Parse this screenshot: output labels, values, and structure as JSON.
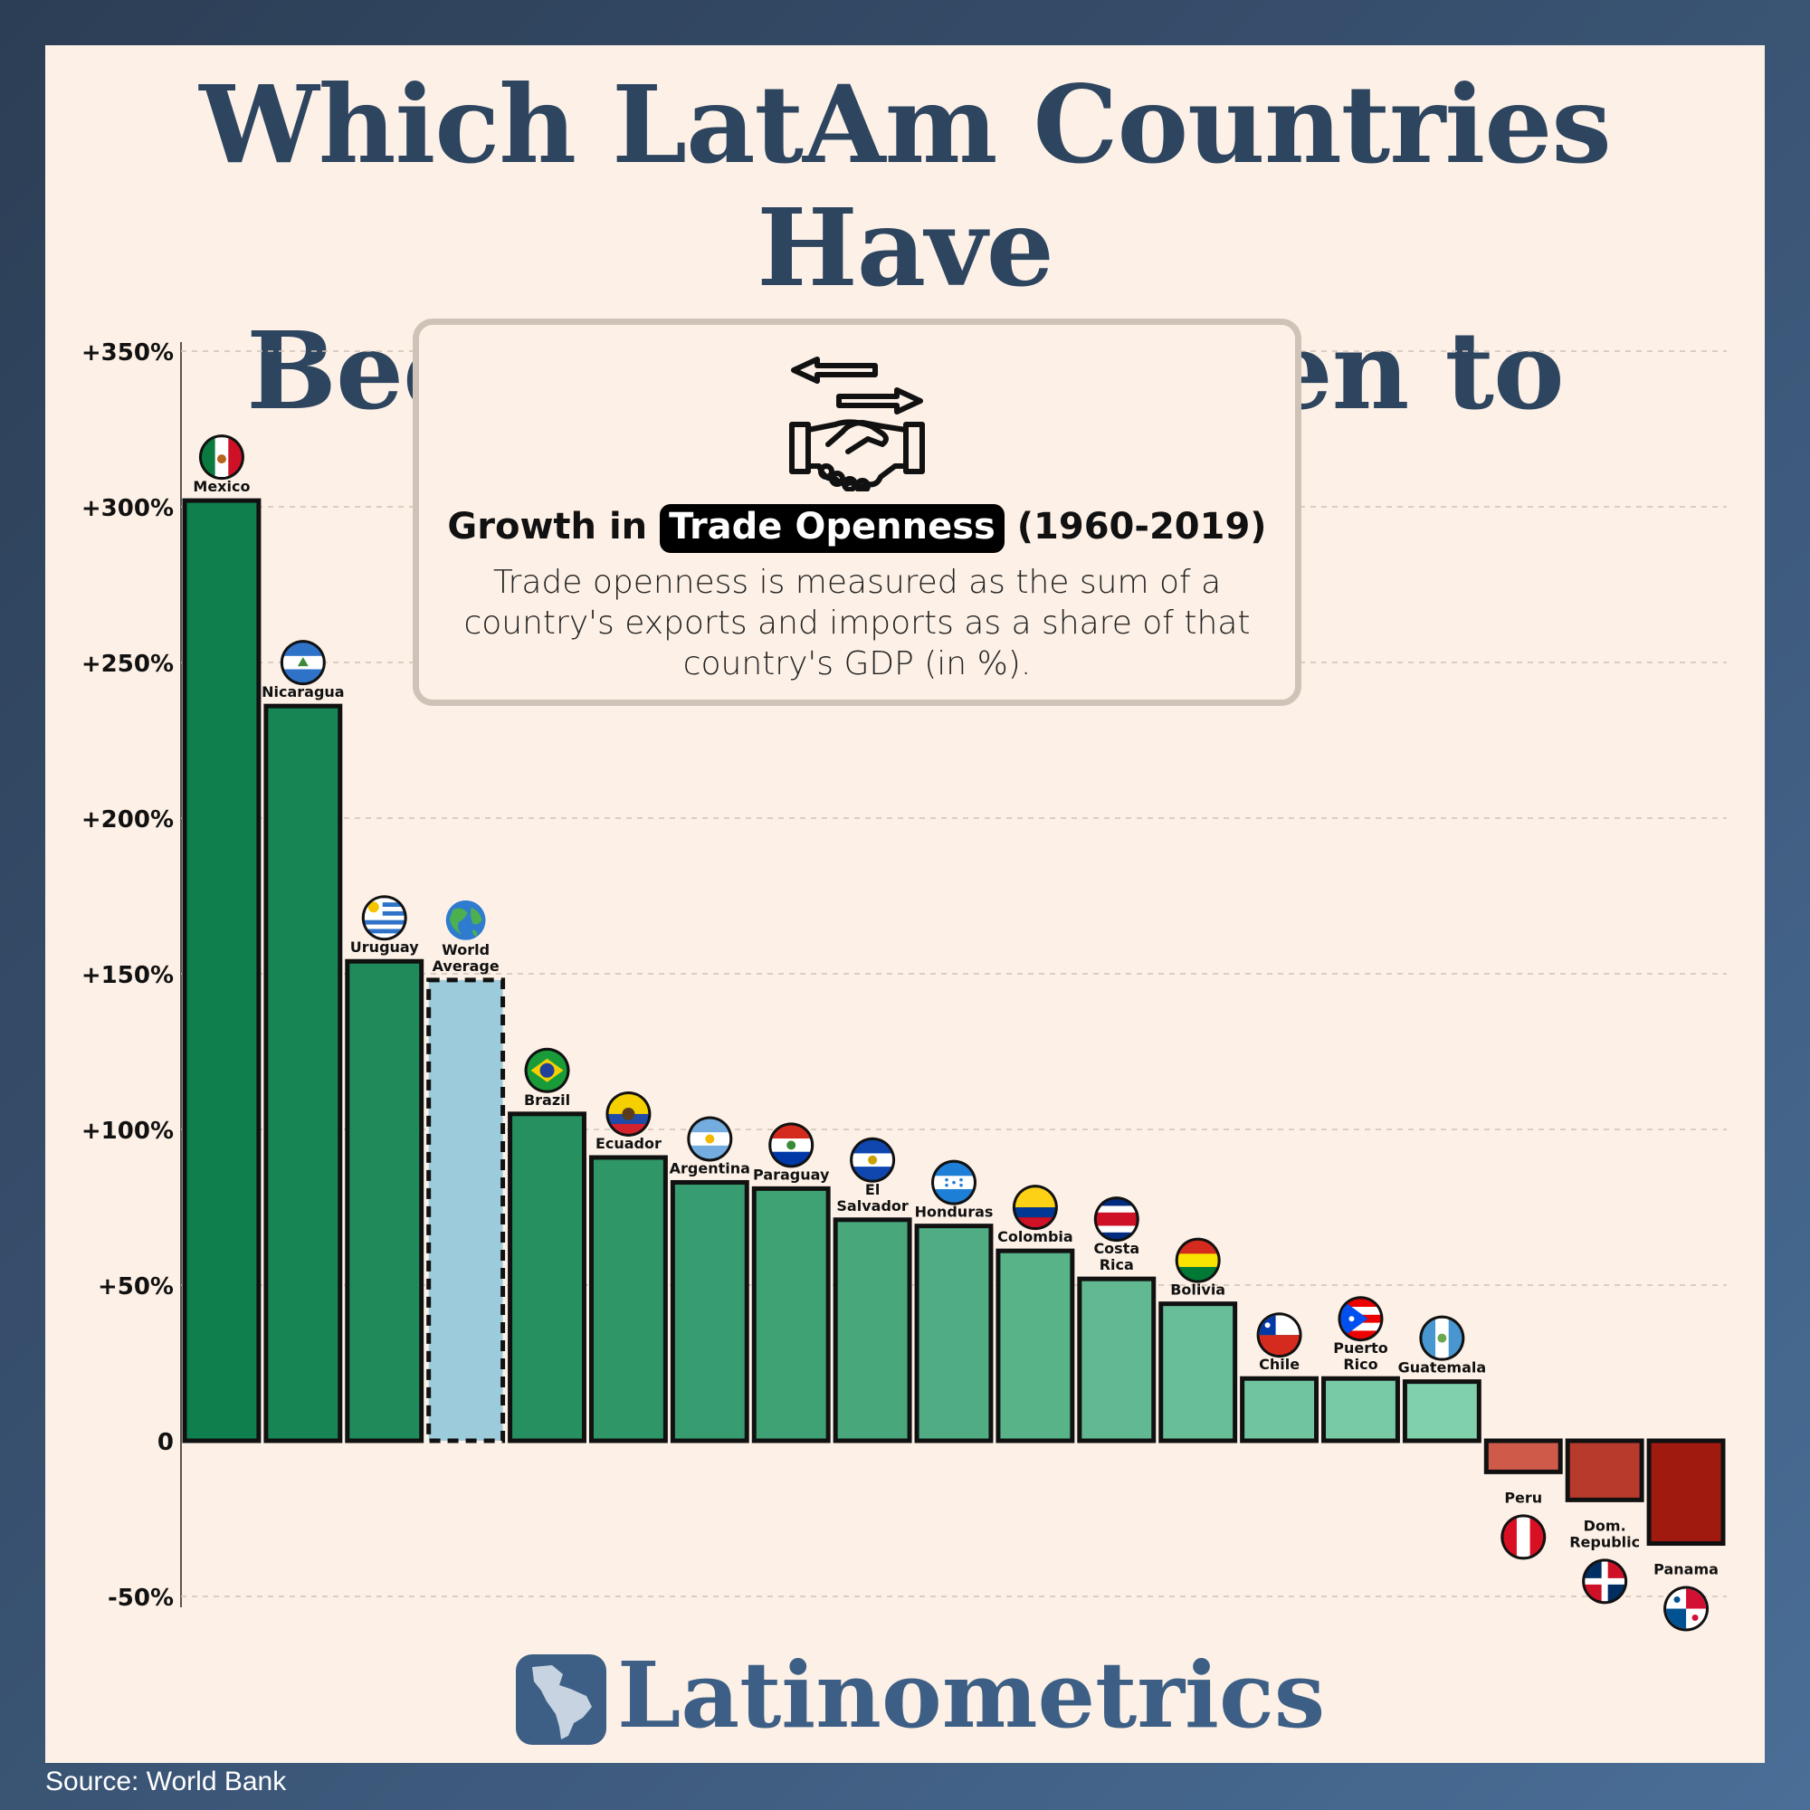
{
  "title_line1": "Which LatAm Countries Have",
  "title_line2": "Become More Open to Trade?",
  "info": {
    "heading_pre": "Growth in ",
    "heading_highlight": "Trade Openness",
    "heading_post": " (1960-2019)",
    "description": "Trade openness is measured as the sum of a country's exports and imports as a share of that country's GDP (in %)."
  },
  "brand": "Latinometrics",
  "source": "Source: World Bank",
  "colors": {
    "title": "#2e4560",
    "positive_dark": "#0f7f4d",
    "positive_light": "#80d0ab",
    "world_average": "#9ccbdb",
    "negative_light": "#d05a4a",
    "negative_dark": "#a01a10",
    "grid": "#cfc3b7",
    "brand": "#3d5f85"
  },
  "chart_data": {
    "type": "bar",
    "title": "Growth in Trade Openness (1960-2019)",
    "ylim": [
      -50,
      350
    ],
    "y_ticks": [
      {
        "value": 350,
        "label": "+350%"
      },
      {
        "value": 300,
        "label": "+300%"
      },
      {
        "value": 250,
        "label": "+250%"
      },
      {
        "value": 200,
        "label": "+200%"
      },
      {
        "value": 150,
        "label": "+150%"
      },
      {
        "value": 100,
        "label": "+100%"
      },
      {
        "value": 50,
        "label": "+50%"
      },
      {
        "value": 0,
        "label": "0"
      },
      {
        "value": -50,
        "label": "-50%"
      }
    ],
    "grid": true,
    "categories": [
      "Mexico",
      "Nicaragua",
      "Uruguay",
      "World Average",
      "Brazil",
      "Ecuador",
      "Argentina",
      "Paraguay",
      "El Salvador",
      "Honduras",
      "Colombia",
      "Costa Rica",
      "Bolivia",
      "Chile",
      "Puerto Rico",
      "Guatemala",
      "Peru",
      "Dom. Republic",
      "Panama"
    ],
    "values": [
      302,
      236,
      154,
      148,
      105,
      91,
      83,
      81,
      71,
      69,
      61,
      52,
      44,
      20,
      20,
      19,
      -10,
      -19,
      -33
    ],
    "flags": [
      "mexico-flag",
      "nicaragua-flag",
      "uruguay-flag",
      "globe",
      "brazil-flag",
      "ecuador-flag",
      "argentina-flag",
      "paraguay-flag",
      "el-salvador-flag",
      "honduras-flag",
      "colombia-flag",
      "costa-rica-flag",
      "bolivia-flag",
      "chile-flag",
      "puerto-rico-flag",
      "guatemala-flag",
      "peru-flag",
      "dominican-republic-flag",
      "panama-flag"
    ]
  }
}
